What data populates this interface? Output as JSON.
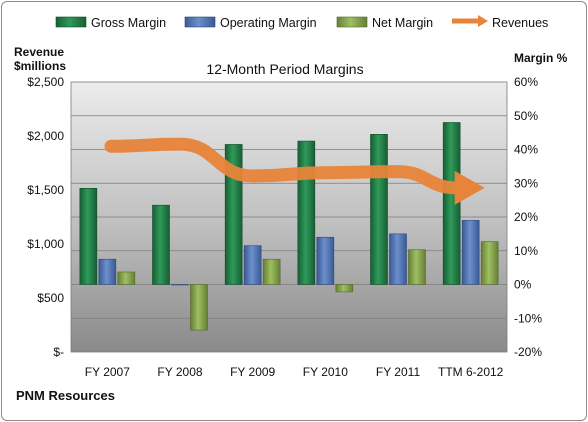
{
  "chart_data": {
    "type": "bar",
    "title": "12-Month Period Margins",
    "categories": [
      "FY 2007",
      "FY 2008",
      "FY 2009",
      "FY 2010",
      "FY 2011",
      "TTM 6-2012"
    ],
    "series": [
      {
        "name": "Gross Margin",
        "axis": "right",
        "values": [
          28.5,
          23.5,
          41.5,
          42.5,
          44.5,
          48.0
        ]
      },
      {
        "name": "Operating Margin",
        "axis": "right",
        "values": [
          7.5,
          0.0,
          11.5,
          14.0,
          15.0,
          19.0
        ]
      },
      {
        "name": "Net Margin",
        "axis": "right",
        "values": [
          3.7,
          -13.5,
          7.5,
          -2.2,
          10.3,
          12.7
        ]
      },
      {
        "name": "Revenues",
        "axis": "left",
        "type": "arrow",
        "values": [
          1905,
          1925,
          1630,
          1660,
          1670,
          1520
        ]
      }
    ],
    "left_axis": {
      "label_line1": "Revenue",
      "label_line2": "$millions",
      "range": [
        0,
        2500
      ],
      "ticks": [
        "$-",
        "$500",
        "$1,000",
        "$1,500",
        "$2,000",
        "$2,500"
      ]
    },
    "right_axis": {
      "label": "Margin %",
      "range": [
        -20,
        60
      ],
      "ticks": [
        "-20%",
        "-10%",
        "0%",
        "10%",
        "20%",
        "30%",
        "40%",
        "50%",
        "60%"
      ]
    },
    "legend": {
      "placement": "top",
      "entries": [
        "Gross Margin",
        "Operating Margin",
        "Net Margin",
        "Revenues"
      ]
    },
    "grid": true
  },
  "company": "PNM Resources",
  "colors": {
    "gross": "#1f7a45",
    "operating": "#4a6fb0",
    "net": "#7f9e46",
    "revenue": "#e8843a"
  }
}
